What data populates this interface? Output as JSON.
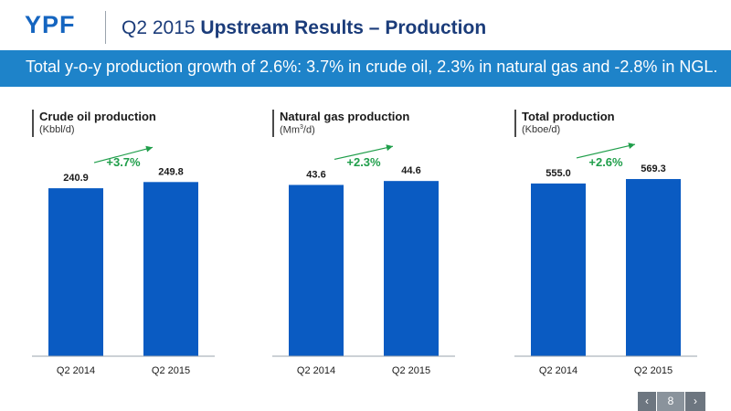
{
  "header": {
    "logo": "YPF",
    "title_prefix": "Q2 2015 ",
    "title_strong": "Upstream Results – Production"
  },
  "banner": {
    "text": "Total y-o-y production growth of 2.6%: 3.7% in crude oil, 2.3% in natural gas and -2.8% in NGL."
  },
  "colors": {
    "bar": "#0a5bc2",
    "growth": "#1f9e4a",
    "banner": "#1e83c9",
    "title": "#1b3c7a"
  },
  "chart_data": [
    {
      "type": "bar",
      "title": "Crude oil production",
      "unit": "(Kbbl/d)",
      "categories": [
        "Q2 2014",
        "Q2 2015"
      ],
      "values": [
        240.9,
        249.8
      ],
      "value_labels": [
        "240.9",
        "249.8"
      ],
      "growth_label": "+3.7%",
      "ylim": [
        0,
        262
      ],
      "grid": false
    },
    {
      "type": "bar",
      "title": "Natural gas production",
      "unit_main": "(Mm",
      "unit_sup": "3",
      "unit_tail": "/d)",
      "categories": [
        "Q2 2014",
        "Q2 2015"
      ],
      "values": [
        43.6,
        44.6
      ],
      "value_labels": [
        "43.6",
        "44.6"
      ],
      "growth_label": "+2.3%",
      "ylim": [
        0,
        46.5
      ],
      "grid": false
    },
    {
      "type": "bar",
      "title": "Total production",
      "unit": "(Kboe/d)",
      "categories": [
        "Q2 2014",
        "Q2 2015"
      ],
      "values": [
        555.0,
        569.3
      ],
      "value_labels": [
        "555.0",
        "569.3"
      ],
      "growth_label": "+2.6%",
      "ylim": [
        0,
        587
      ],
      "grid": false
    }
  ],
  "nav": {
    "prev": "‹",
    "page": "8",
    "next": "›"
  }
}
